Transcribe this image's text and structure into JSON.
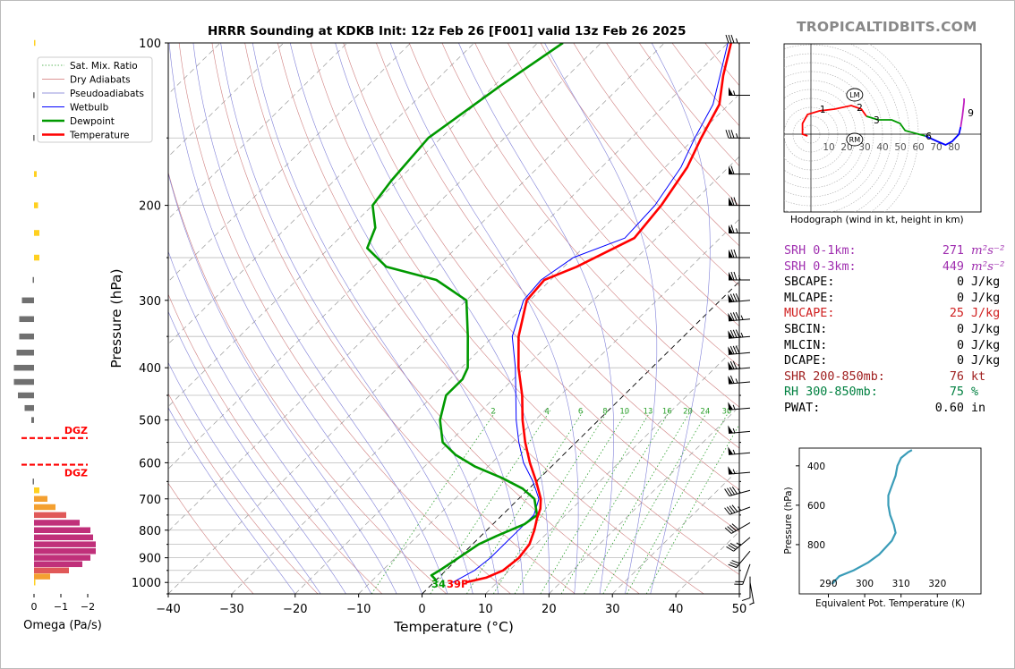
{
  "title": "HRRR Sounding at KDKB Init: 12z Feb 26 [F001] valid 13z Feb 26 2025",
  "brand": "TROPICALTIDBITS.COM",
  "legend": {
    "items": [
      {
        "label": "Sat. Mix. Ratio",
        "color": "#2ca02c",
        "style": "dotted"
      },
      {
        "label": "Dry Adiabats",
        "color": "#d07070",
        "style": "solid"
      },
      {
        "label": "Pseudoadiabats",
        "color": "#7070d0",
        "style": "solid"
      },
      {
        "label": "Wetbulb",
        "color": "#0000ff",
        "style": "solid"
      },
      {
        "label": "Dewpoint",
        "color": "#009900",
        "style": "solid"
      },
      {
        "label": "Temperature",
        "color": "#ff0000",
        "style": "solid"
      }
    ]
  },
  "colors": {
    "temperature": "#ff0000",
    "dewpoint": "#009900",
    "wetbulb": "#0000ff",
    "srh": "#a030b0",
    "mucape": "#d02020",
    "shr": "#a02020",
    "rh": "#008040",
    "dgz": "#ff0000"
  },
  "chart_data": [
    {
      "type": "line",
      "name": "skew-t",
      "xlabel": "Temperature (°C)",
      "ylabel": "Pressure (hPa)",
      "xlim": [
        -40,
        50
      ],
      "ylim": [
        1050,
        100
      ],
      "yscale": "log",
      "x_ticks": [
        "−40",
        "−30",
        "−20",
        "−10",
        "0",
        "10",
        "20",
        "30",
        "40",
        "50"
      ],
      "y_ticks": [
        "100",
        "200",
        "300",
        "400",
        "500",
        "600",
        "700",
        "800",
        "900",
        "1000"
      ],
      "mixing_ratio_labels": [
        "2",
        "4",
        "6",
        "8",
        "10",
        "13",
        "16",
        "20",
        "24",
        "30",
        "36"
      ],
      "surface_labels": {
        "dewpoint": "34",
        "temperature": "39F"
      },
      "series": [
        {
          "name": "Temperature",
          "points": [
            [
              1000,
              5
            ],
            [
              980,
              7.5
            ],
            [
              950,
              9
            ],
            [
              900,
              9.5
            ],
            [
              850,
              9
            ],
            [
              800,
              7.5
            ],
            [
              760,
              6
            ],
            [
              730,
              5
            ],
            [
              700,
              3.5
            ],
            [
              650,
              0
            ],
            [
              600,
              -4
            ],
            [
              550,
              -8
            ],
            [
              500,
              -12
            ],
            [
              450,
              -16
            ],
            [
              400,
              -21
            ],
            [
              350,
              -26
            ],
            [
              300,
              -30.5
            ],
            [
              275,
              -31
            ],
            [
              260,
              -28
            ],
            [
              230,
              -23.5
            ],
            [
              200,
              -24.5
            ],
            [
              170,
              -26.5
            ],
            [
              150,
              -29
            ],
            [
              130,
              -31.5
            ],
            [
              115,
              -35.5
            ],
            [
              100,
              -39.5
            ]
          ]
        },
        {
          "name": "Dewpoint",
          "points": [
            [
              990,
              0
            ],
            [
              970,
              -1.5
            ],
            [
              950,
              -1
            ],
            [
              900,
              0
            ],
            [
              850,
              1
            ],
            [
              820,
              2.5
            ],
            [
              780,
              5
            ],
            [
              750,
              5.5
            ],
            [
              700,
              2.5
            ],
            [
              670,
              -1
            ],
            [
              640,
              -6
            ],
            [
              610,
              -12
            ],
            [
              580,
              -17
            ],
            [
              550,
              -21
            ],
            [
              500,
              -25
            ],
            [
              450,
              -28
            ],
            [
              420,
              -28
            ],
            [
              400,
              -29
            ],
            [
              350,
              -34
            ],
            [
              300,
              -40
            ],
            [
              275,
              -48
            ],
            [
              260,
              -58
            ],
            [
              240,
              -64
            ],
            [
              220,
              -66
            ],
            [
              200,
              -70
            ],
            [
              180,
              -71
            ],
            [
              150,
              -72
            ],
            [
              120,
              -69
            ],
            [
              100,
              -66
            ]
          ]
        },
        {
          "name": "Wetbulb",
          "points": [
            [
              1000,
              3
            ],
            [
              950,
              4.5
            ],
            [
              900,
              5
            ],
            [
              850,
              5
            ],
            [
              800,
              5
            ],
            [
              750,
              5
            ],
            [
              700,
              3.2
            ],
            [
              650,
              -0.5
            ],
            [
              600,
              -5
            ],
            [
              550,
              -9
            ],
            [
              500,
              -13
            ],
            [
              450,
              -17
            ],
            [
              400,
              -21.5
            ],
            [
              350,
              -27
            ],
            [
              300,
              -31
            ],
            [
              275,
              -31.5
            ],
            [
              250,
              -30
            ],
            [
              230,
              -25
            ],
            [
              200,
              -25.5
            ],
            [
              170,
              -27.5
            ],
            [
              150,
              -30
            ],
            [
              130,
              -32.5
            ],
            [
              115,
              -36
            ],
            [
              100,
              -40
            ]
          ]
        }
      ]
    },
    {
      "type": "line",
      "name": "hodograph",
      "caption": "Hodograph (wind in kt, height in km)",
      "ring_labels": [
        "10",
        "20",
        "30",
        "40",
        "50",
        "60",
        "70",
        "80"
      ],
      "height_labels": [
        "1",
        "2",
        "3",
        "6",
        "9"
      ],
      "markers": [
        "LM",
        "RM"
      ],
      "segments": [
        {
          "color": "#ff0000",
          "points": [
            [
              -2,
              -1
            ],
            [
              -5,
              0
            ],
            [
              -5,
              6
            ],
            [
              -2,
              11
            ],
            [
              5,
              13
            ],
            [
              14,
              14
            ],
            [
              24,
              16
            ],
            [
              30,
              14
            ],
            [
              33,
              10
            ]
          ]
        },
        {
          "color": "#009900",
          "points": [
            [
              33,
              10
            ],
            [
              40,
              8
            ],
            [
              48,
              8
            ],
            [
              53,
              6
            ],
            [
              56,
              2
            ],
            [
              64,
              0
            ],
            [
              68,
              -1
            ]
          ]
        },
        {
          "color": "#0000ff",
          "points": [
            [
              68,
              -1
            ],
            [
              75,
              -4
            ],
            [
              80,
              -6
            ],
            [
              84,
              -4
            ],
            [
              88,
              0
            ],
            [
              89,
              4
            ]
          ]
        },
        {
          "color": "#c020c0",
          "points": [
            [
              89,
              4
            ],
            [
              90,
              10
            ],
            [
              91,
              18
            ],
            [
              91,
              20
            ]
          ]
        }
      ],
      "marker_positions": [
        {
          "label": "LM",
          "u": 26,
          "v": 22
        },
        {
          "label": "RM",
          "u": 26,
          "v": -3
        }
      ]
    },
    {
      "type": "bar",
      "name": "omega",
      "xlabel": "Omega (Pa/s)",
      "x_ticks": [
        "0",
        "−1",
        "−2"
      ],
      "dgz_label": "DGZ",
      "dgz_levels": [
        540,
        605
      ],
      "bars": [
        {
          "p": 1000,
          "v": -0.05
        },
        {
          "p": 975,
          "v": -0.6
        },
        {
          "p": 950,
          "v": -1.3
        },
        {
          "p": 925,
          "v": -1.8
        },
        {
          "p": 900,
          "v": -2.1
        },
        {
          "p": 875,
          "v": -2.3
        },
        {
          "p": 850,
          "v": -2.3
        },
        {
          "p": 825,
          "v": -2.2
        },
        {
          "p": 800,
          "v": -2.1
        },
        {
          "p": 775,
          "v": -1.7
        },
        {
          "p": 750,
          "v": -1.2
        },
        {
          "p": 725,
          "v": -0.8
        },
        {
          "p": 700,
          "v": -0.5
        },
        {
          "p": 675,
          "v": -0.2
        },
        {
          "p": 650,
          "v": 0.05
        },
        {
          "p": 500,
          "v": 0.1
        },
        {
          "p": 475,
          "v": 0.35
        },
        {
          "p": 450,
          "v": 0.6
        },
        {
          "p": 425,
          "v": 0.75
        },
        {
          "p": 400,
          "v": 0.75
        },
        {
          "p": 375,
          "v": 0.65
        },
        {
          "p": 350,
          "v": 0.55
        },
        {
          "p": 325,
          "v": 0.55
        },
        {
          "p": 300,
          "v": 0.45
        },
        {
          "p": 275,
          "v": 0.05
        },
        {
          "p": 250,
          "v": -0.2
        },
        {
          "p": 225,
          "v": -0.2
        },
        {
          "p": 200,
          "v": -0.15
        },
        {
          "p": 175,
          "v": -0.1
        },
        {
          "p": 150,
          "v": 0.03
        },
        {
          "p": 125,
          "v": 0.03
        },
        {
          "p": 100,
          "v": -0.05
        }
      ]
    },
    {
      "type": "line",
      "name": "theta-e",
      "xlabel": "Equivalent Pot. Temperature (K)",
      "ylabel": "Pressure (hPa)",
      "x_ticks": [
        "290",
        "300",
        "310",
        "320"
      ],
      "y_ticks": [
        "400",
        "600",
        "800"
      ],
      "points": [
        [
          1000,
          291
        ],
        [
          960,
          293
        ],
        [
          930,
          297
        ],
        [
          890,
          301
        ],
        [
          850,
          304
        ],
        [
          810,
          306
        ],
        [
          780,
          307.5
        ],
        [
          740,
          308.5
        ],
        [
          700,
          308
        ],
        [
          650,
          307
        ],
        [
          600,
          306.5
        ],
        [
          550,
          306.5
        ],
        [
          500,
          307.5
        ],
        [
          450,
          308.5
        ],
        [
          400,
          309
        ],
        [
          360,
          310
        ],
        [
          330,
          312
        ],
        [
          320,
          313
        ]
      ]
    }
  ],
  "stats": [
    {
      "label": "SRH 0-1km:",
      "value": "271",
      "unit": "m²s⁻²",
      "color": "srh"
    },
    {
      "label": "SRH 0-3km:",
      "value": "449",
      "unit": "m²s⁻²",
      "color": "srh"
    },
    {
      "label": "SBCAPE:",
      "value": "0",
      "unit": "J/kg",
      "color": ""
    },
    {
      "label": "MLCAPE:",
      "value": "0",
      "unit": "J/kg",
      "color": ""
    },
    {
      "label": "MUCAPE:",
      "value": "25",
      "unit": "J/kg",
      "color": "mucape"
    },
    {
      "label": "SBCIN:",
      "value": "0",
      "unit": "J/kg",
      "color": ""
    },
    {
      "label": "MLCIN:",
      "value": "0",
      "unit": "J/kg",
      "color": ""
    },
    {
      "label": "DCAPE:",
      "value": "0",
      "unit": "J/kg",
      "color": ""
    },
    {
      "label": "SHR 200-850mb:",
      "value": "76",
      "unit": "kt",
      "color": "shr"
    },
    {
      "label": "RH 300-850mb:",
      "value": "75",
      "unit": "%",
      "color": "rh"
    },
    {
      "label": "PWAT:",
      "value": "0.60",
      "unit": "in",
      "color": ""
    }
  ],
  "wind_barbs": [
    {
      "p": 100,
      "speed": 35,
      "dir": 270
    },
    {
      "p": 125,
      "speed": 55,
      "dir": 270
    },
    {
      "p": 150,
      "speed": 35,
      "dir": 270
    },
    {
      "p": 175,
      "speed": 60,
      "dir": 270
    },
    {
      "p": 200,
      "speed": 70,
      "dir": 270
    },
    {
      "p": 225,
      "speed": 65,
      "dir": 270
    },
    {
      "p": 250,
      "speed": 70,
      "dir": 270
    },
    {
      "p": 275,
      "speed": 75,
      "dir": 270
    },
    {
      "p": 300,
      "speed": 80,
      "dir": 265
    },
    {
      "p": 325,
      "speed": 85,
      "dir": 265
    },
    {
      "p": 350,
      "speed": 85,
      "dir": 265
    },
    {
      "p": 375,
      "speed": 80,
      "dir": 265
    },
    {
      "p": 400,
      "speed": 75,
      "dir": 265
    },
    {
      "p": 425,
      "speed": 65,
      "dir": 265
    },
    {
      "p": 475,
      "speed": 55,
      "dir": 265
    },
    {
      "p": 525,
      "speed": 55,
      "dir": 265
    },
    {
      "p": 575,
      "speed": 55,
      "dir": 265
    },
    {
      "p": 625,
      "speed": 55,
      "dir": 265
    },
    {
      "p": 675,
      "speed": 45,
      "dir": 255
    },
    {
      "p": 725,
      "speed": 45,
      "dir": 250
    },
    {
      "p": 775,
      "speed": 40,
      "dir": 240
    },
    {
      "p": 825,
      "speed": 35,
      "dir": 230
    },
    {
      "p": 875,
      "speed": 30,
      "dir": 220
    },
    {
      "p": 925,
      "speed": 20,
      "dir": 200
    },
    {
      "p": 975,
      "speed": 10,
      "dir": 180
    },
    {
      "p": 1000,
      "speed": 5,
      "dir": 170
    }
  ]
}
